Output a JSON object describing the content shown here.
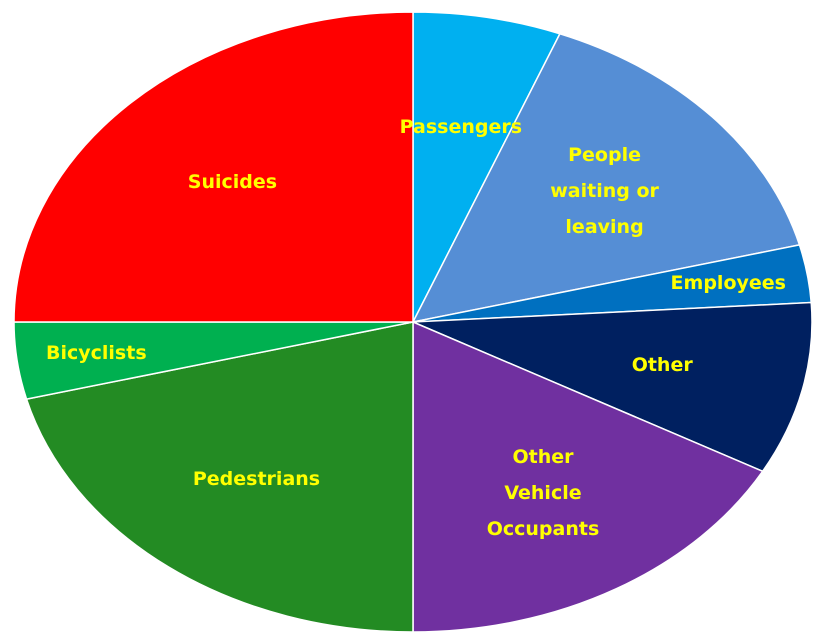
{
  "chart_data": {
    "type": "pie",
    "categories": [
      "Passengers",
      "People\nwaiting or\nleaving",
      "Employees",
      "Other",
      "Other\nVehicle\nOccupants",
      "Pedestrians",
      "Bicyclists",
      "Suicides"
    ],
    "values": [
      6,
      15,
      3,
      9,
      17,
      21,
      4,
      25
    ],
    "colors": [
      "#00b0f0",
      "#558ed5",
      "#0070c0",
      "#002060",
      "#7030a0",
      "#238b23",
      "#00b050",
      "#ff0000"
    ],
    "label_color": "#ffff00",
    "start_angle": 0,
    "direction": "clockwise"
  }
}
